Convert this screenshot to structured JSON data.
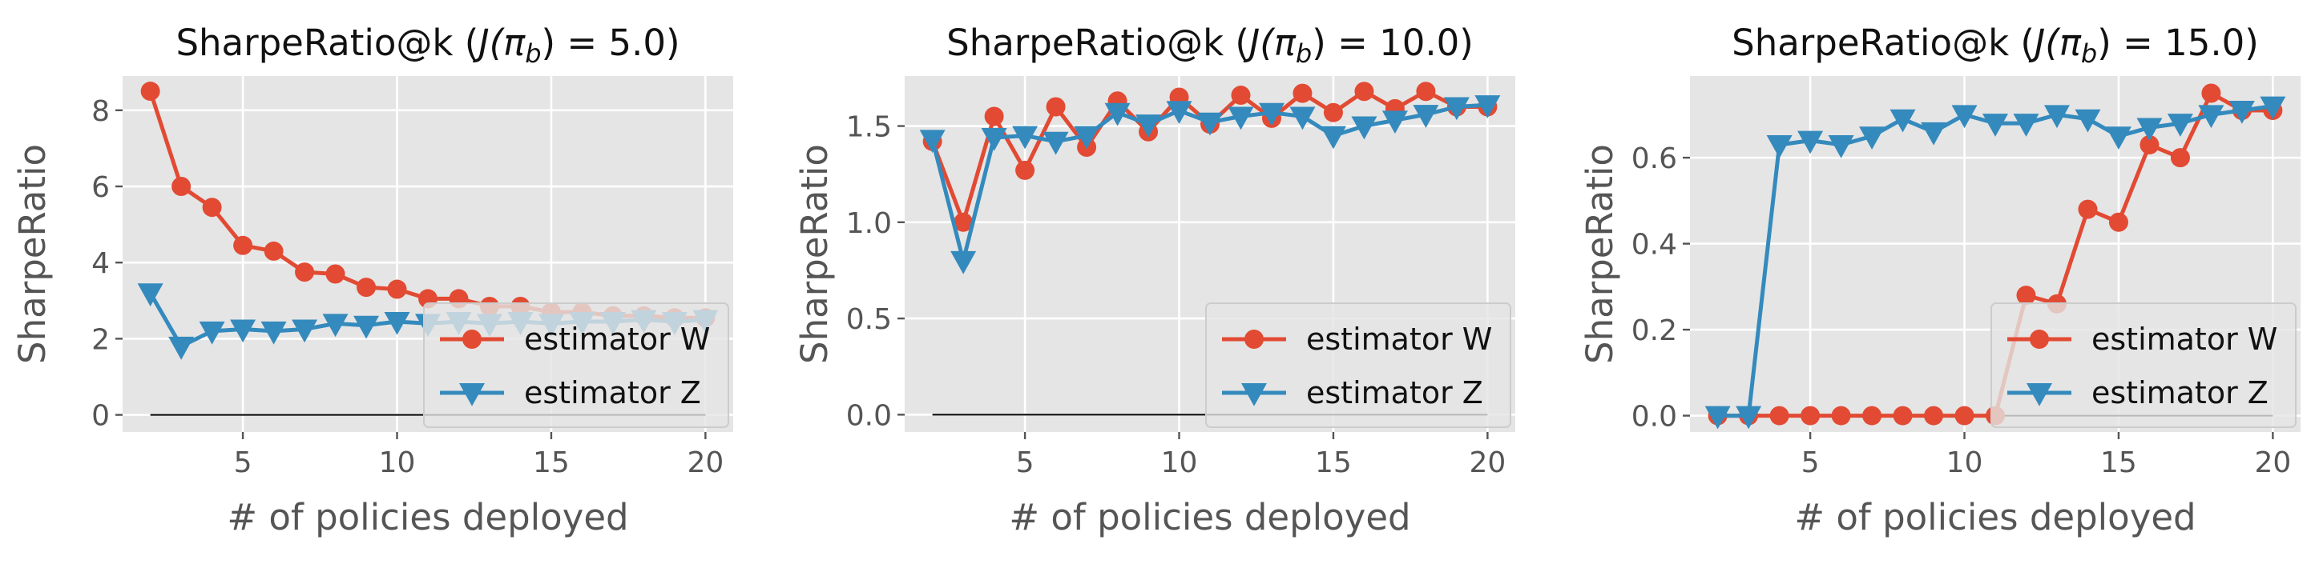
{
  "chart_data": [
    {
      "type": "line",
      "title": "SharpeRatio@k (J(π_b) = 5.0)",
      "title_main": "SharpeRatio@k (",
      "title_math": "J(π",
      "title_sub": "b",
      "title_end": ") = 5.0)",
      "xlabel": "# of policies deployed",
      "ylabel": "SharpeRatio",
      "xlim": [
        1.1,
        20.9
      ],
      "ylim": [
        -0.45,
        8.9
      ],
      "xticks": [
        5,
        10,
        15,
        20
      ],
      "yticks": [
        0,
        2,
        4,
        6,
        8
      ],
      "ytick_labels": [
        "0",
        "2",
        "4",
        "6",
        "8"
      ],
      "baseline": 0,
      "legend_position": "lower right",
      "grid": true,
      "x": [
        2,
        3,
        4,
        5,
        6,
        7,
        8,
        9,
        10,
        11,
        12,
        13,
        14,
        15,
        16,
        17,
        18,
        19,
        20
      ],
      "series": [
        {
          "name": "estimator W",
          "color": "#E24A33",
          "marker": "circle",
          "values": [
            8.5,
            6.0,
            5.45,
            4.45,
            4.3,
            3.75,
            3.7,
            3.35,
            3.3,
            3.05,
            3.05,
            2.85,
            2.85,
            2.7,
            2.7,
            2.6,
            2.6,
            2.55,
            2.55
          ]
        },
        {
          "name": "estimator Z",
          "color": "#348ABD",
          "marker": "triangle-down",
          "values": [
            3.2,
            1.8,
            2.2,
            2.25,
            2.2,
            2.25,
            2.4,
            2.35,
            2.45,
            2.4,
            2.45,
            2.4,
            2.45,
            2.4,
            2.45,
            2.45,
            2.5,
            2.45,
            2.5
          ]
        }
      ]
    },
    {
      "type": "line",
      "title": "SharpeRatio@k (J(π_b) = 10.0)",
      "title_main": "SharpeRatio@k (",
      "title_math": "J(π",
      "title_sub": "b",
      "title_end": ") = 10.0)",
      "xlabel": "# of policies deployed",
      "ylabel": "SharpeRatio",
      "xlim": [
        1.1,
        20.9
      ],
      "ylim": [
        -0.09,
        1.76
      ],
      "xticks": [
        5,
        10,
        15,
        20
      ],
      "yticks": [
        0.0,
        0.5,
        1.0,
        1.5
      ],
      "ytick_labels": [
        "0.0",
        "0.5",
        "1.0",
        "1.5"
      ],
      "baseline": 0,
      "legend_position": "lower right",
      "grid": true,
      "x": [
        2,
        3,
        4,
        5,
        6,
        7,
        8,
        9,
        10,
        11,
        12,
        13,
        14,
        15,
        16,
        17,
        18,
        19,
        20
      ],
      "series": [
        {
          "name": "estimator W",
          "color": "#E24A33",
          "marker": "circle",
          "values": [
            1.42,
            1.0,
            1.55,
            1.27,
            1.6,
            1.39,
            1.63,
            1.47,
            1.65,
            1.51,
            1.66,
            1.54,
            1.67,
            1.57,
            1.68,
            1.59,
            1.68,
            1.6,
            1.6
          ]
        },
        {
          "name": "estimator Z",
          "color": "#348ABD",
          "marker": "triangle-down",
          "values": [
            1.43,
            0.8,
            1.44,
            1.45,
            1.42,
            1.45,
            1.57,
            1.51,
            1.58,
            1.52,
            1.55,
            1.57,
            1.55,
            1.45,
            1.5,
            1.53,
            1.56,
            1.6,
            1.61
          ]
        }
      ]
    },
    {
      "type": "line",
      "title": "SharpeRatio@k (J(π_b) = 15.0)",
      "title_main": "SharpeRatio@k (",
      "title_math": "J(π",
      "title_sub": "b",
      "title_end": ") = 15.0)",
      "xlabel": "# of policies deployed",
      "ylabel": "SharpeRatio",
      "xlim": [
        1.1,
        20.9
      ],
      "ylim": [
        -0.038,
        0.79
      ],
      "xticks": [
        5,
        10,
        15,
        20
      ],
      "yticks": [
        0.0,
        0.2,
        0.4,
        0.6
      ],
      "ytick_labels": [
        "0.0",
        "0.2",
        "0.4",
        "0.6"
      ],
      "baseline": 0,
      "legend_position": "lower right",
      "grid": true,
      "x": [
        2,
        3,
        4,
        5,
        6,
        7,
        8,
        9,
        10,
        11,
        12,
        13,
        14,
        15,
        16,
        17,
        18,
        19,
        20
      ],
      "series": [
        {
          "name": "estimator W",
          "color": "#E24A33",
          "marker": "circle",
          "values": [
            0,
            0,
            0,
            0,
            0,
            0,
            0,
            0,
            0,
            0,
            0.28,
            0.26,
            0.48,
            0.45,
            0.63,
            0.6,
            0.75,
            0.71,
            0.71
          ]
        },
        {
          "name": "estimator Z",
          "color": "#348ABD",
          "marker": "triangle-down",
          "values": [
            0,
            0,
            0.63,
            0.64,
            0.63,
            0.65,
            0.69,
            0.66,
            0.7,
            0.68,
            0.68,
            0.7,
            0.69,
            0.65,
            0.67,
            0.68,
            0.7,
            0.71,
            0.72
          ]
        }
      ]
    }
  ]
}
